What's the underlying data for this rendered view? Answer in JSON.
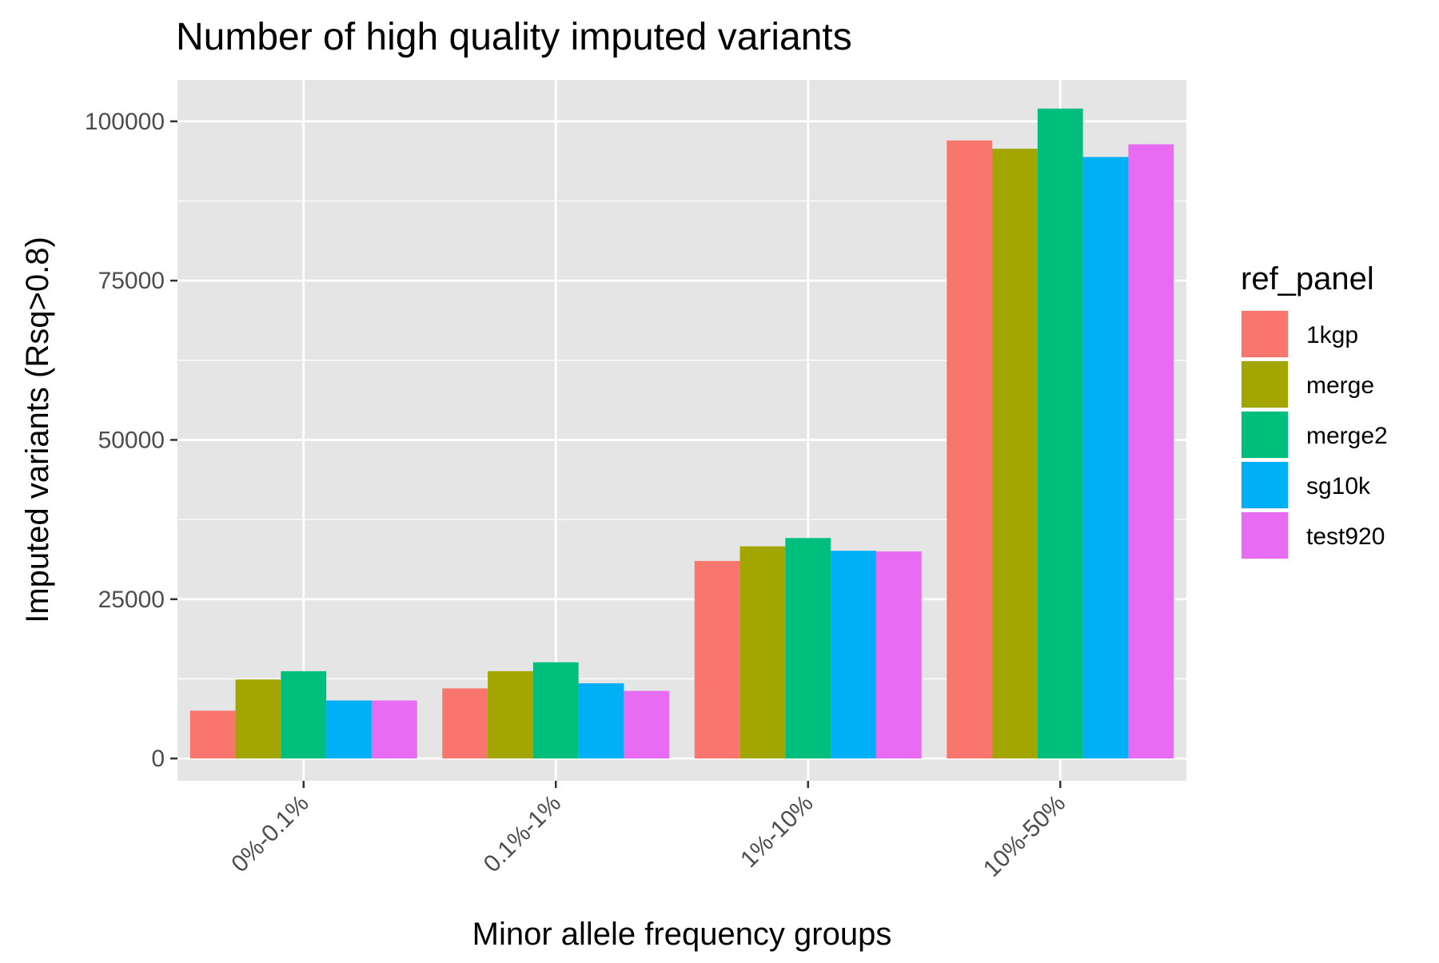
{
  "chart_data": {
    "type": "bar",
    "title": "Number of high quality imputed variants",
    "xlabel": "Minor allele frequency groups",
    "ylabel": "Imputed variants (Rsq>0.8)",
    "categories": [
      "0%-0.1%",
      "0.1%-1%",
      "1%-10%",
      "10%-50%"
    ],
    "ylim": [
      -3500,
      106500
    ],
    "yticks": [
      0,
      25000,
      50000,
      75000,
      100000
    ],
    "yticks_labels": [
      "0",
      "25000",
      "50000",
      "75000",
      "100000"
    ],
    "grid": true,
    "legend": {
      "title": "ref_panel",
      "position": "right"
    },
    "series": [
      {
        "name": "1kgp",
        "color": "#F8766D",
        "values": [
          7500,
          11000,
          31000,
          97000
        ]
      },
      {
        "name": "merge",
        "color": "#A3A500",
        "values": [
          12400,
          13700,
          33300,
          95700
        ]
      },
      {
        "name": "merge2",
        "color": "#00BF7D",
        "values": [
          13700,
          15100,
          34600,
          102000
        ]
      },
      {
        "name": "sg10k",
        "color": "#00B0F6",
        "values": [
          9100,
          11800,
          32600,
          94400
        ]
      },
      {
        "name": "test920",
        "color": "#E76BF3",
        "values": [
          9100,
          10600,
          32500,
          96400
        ]
      }
    ],
    "panel_background": "#E5E5E5",
    "gridline_color": "#FFFFFF"
  }
}
